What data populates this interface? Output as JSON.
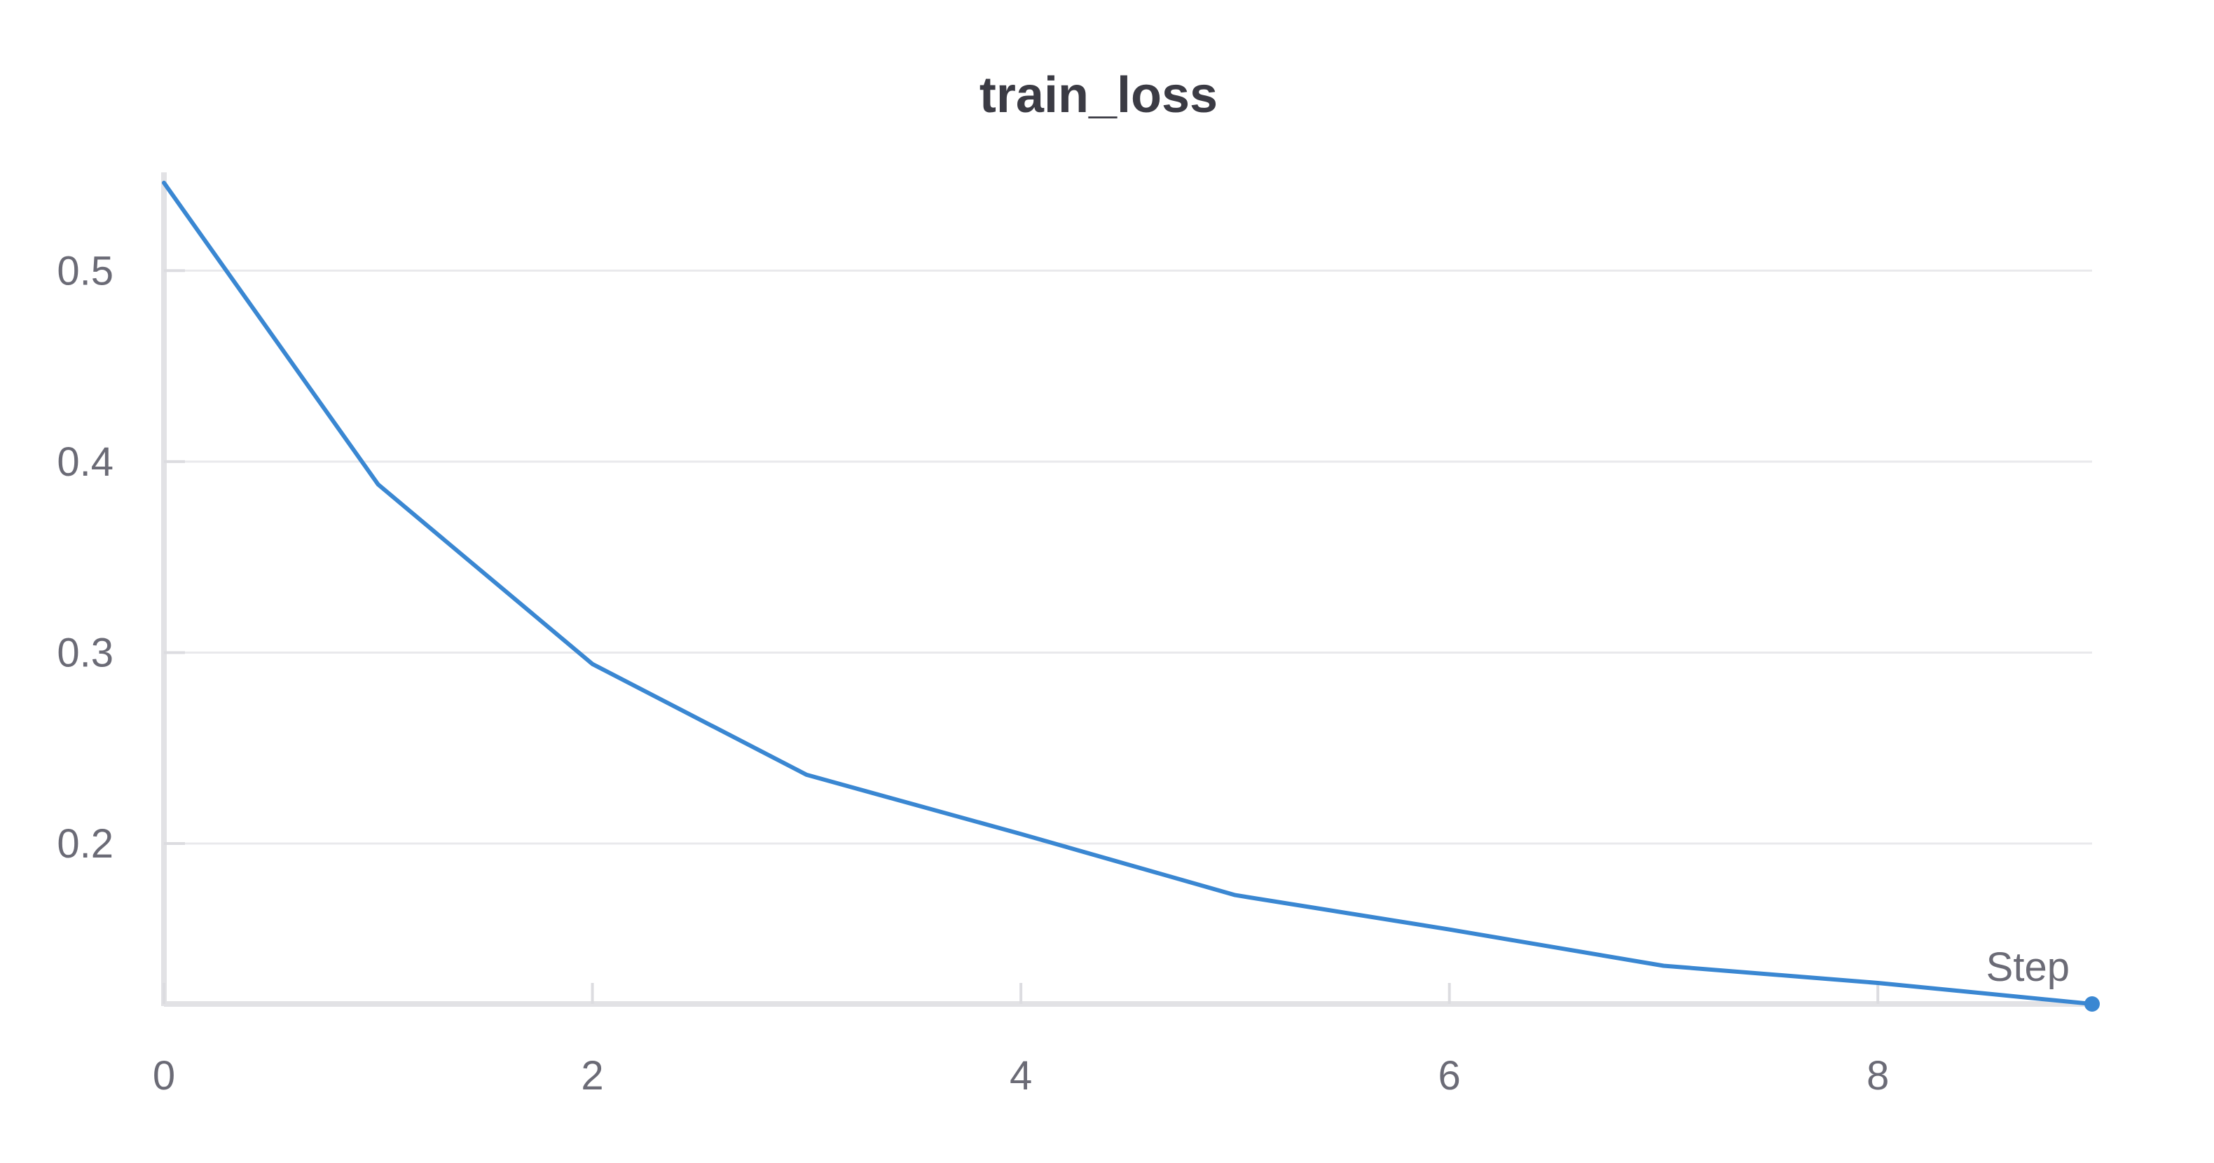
{
  "chart_data": {
    "type": "line",
    "title": "train_loss",
    "xlabel": "Step",
    "ylabel": "",
    "x_ticks": [
      0,
      2,
      4,
      6,
      8
    ],
    "y_ticks": [
      0.2,
      0.3,
      0.4,
      0.5
    ],
    "xlim": [
      0,
      9
    ],
    "ylim": [
      0.116,
      0.55
    ],
    "grid": "horizontal",
    "colors": {
      "series": "#3a87d2"
    },
    "series": [
      {
        "x": [
          0,
          1,
          2,
          3,
          4,
          5,
          6,
          7,
          8,
          9
        ],
        "values": [
          0.546,
          0.388,
          0.294,
          0.236,
          0.205,
          0.173,
          0.155,
          0.136,
          0.127,
          0.116
        ]
      }
    ]
  }
}
